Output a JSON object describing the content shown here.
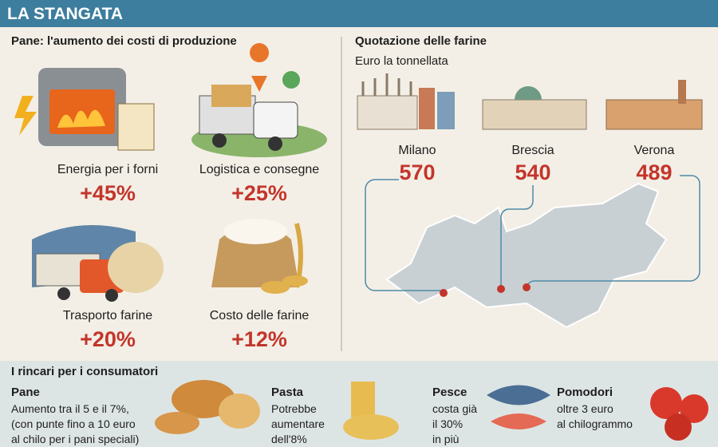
{
  "header": {
    "title": "LA STANGATA"
  },
  "costs": {
    "title": "Pane: l'aumento dei costi di produzione",
    "items": [
      {
        "label": "Energia per i forni",
        "value": "+45%"
      },
      {
        "label": "Logistica e consegne",
        "value": "+25%"
      },
      {
        "label": "Trasporto farine",
        "value": "+20%"
      },
      {
        "label": "Costo delle farine",
        "value": "+12%"
      }
    ]
  },
  "flour": {
    "title": "Quotazione delle farine",
    "subtitle": "Euro la tonnellata",
    "cities": [
      {
        "name": "Milano",
        "value": 570
      },
      {
        "name": "Brescia",
        "value": 540
      },
      {
        "name": "Verona",
        "value": 489
      }
    ]
  },
  "consumers": {
    "title": "I rincari per i consumatori",
    "items": [
      {
        "name": "Pane",
        "lines": [
          "Aumento tra il 5 e il 7%,",
          "(con punte fino a 10 euro",
          "al chilo per i pani speciali)"
        ]
      },
      {
        "name": "Pasta",
        "lines": [
          "Potrebbe",
          "aumentare",
          "dell'8%"
        ]
      },
      {
        "name": "Pesce",
        "lines": [
          "costa già",
          "il 30%",
          "in più"
        ]
      },
      {
        "name": "Pomodori",
        "lines": [
          "oltre 3 euro",
          "al chilogrammo"
        ]
      }
    ]
  }
}
